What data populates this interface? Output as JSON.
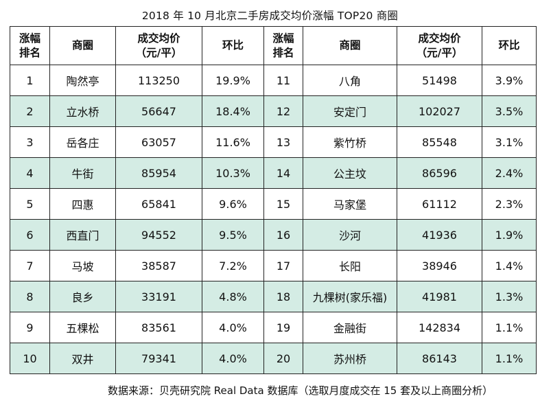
{
  "title": "2018 年 10 月北京二手房成交均价涨幅 TOP20 商圈",
  "header": {
    "rank_line1": "涨幅",
    "rank_line2": "排名",
    "area": "商圈",
    "price_line1": "成交均价",
    "price_line2": "（元/平）",
    "mom": "环比"
  },
  "rows": [
    {
      "left": {
        "rank": "1",
        "area": "陶然亭",
        "price": "113250",
        "mom": "19.9%"
      },
      "right": {
        "rank": "11",
        "area": "八角",
        "price": "51498",
        "mom": "3.9%"
      }
    },
    {
      "left": {
        "rank": "2",
        "area": "立水桥",
        "price": "56647",
        "mom": "18.4%"
      },
      "right": {
        "rank": "12",
        "area": "安定门",
        "price": "102027",
        "mom": "3.5%"
      }
    },
    {
      "left": {
        "rank": "3",
        "area": "岳各庄",
        "price": "63057",
        "mom": "11.6%"
      },
      "right": {
        "rank": "13",
        "area": "紫竹桥",
        "price": "85548",
        "mom": "3.1%"
      }
    },
    {
      "left": {
        "rank": "4",
        "area": "牛街",
        "price": "85954",
        "mom": "10.3%"
      },
      "right": {
        "rank": "14",
        "area": "公主坟",
        "price": "86596",
        "mom": "2.4%"
      }
    },
    {
      "left": {
        "rank": "5",
        "area": "四惠",
        "price": "65841",
        "mom": "9.6%"
      },
      "right": {
        "rank": "15",
        "area": "马家堡",
        "price": "61112",
        "mom": "2.3%"
      }
    },
    {
      "left": {
        "rank": "6",
        "area": "西直门",
        "price": "94552",
        "mom": "9.5%"
      },
      "right": {
        "rank": "16",
        "area": "沙河",
        "price": "41936",
        "mom": "1.9%"
      }
    },
    {
      "left": {
        "rank": "7",
        "area": "马坡",
        "price": "38587",
        "mom": "7.2%"
      },
      "right": {
        "rank": "17",
        "area": "长阳",
        "price": "38946",
        "mom": "1.4%"
      }
    },
    {
      "left": {
        "rank": "8",
        "area": "良乡",
        "price": "33191",
        "mom": "4.8%"
      },
      "right": {
        "rank": "18",
        "area": "九棵树(家乐福)",
        "price": "41981",
        "mom": "1.3%"
      }
    },
    {
      "left": {
        "rank": "9",
        "area": "五棵松",
        "price": "83561",
        "mom": "4.0%"
      },
      "right": {
        "rank": "19",
        "area": "金融街",
        "price": "142834",
        "mom": "1.1%"
      }
    },
    {
      "left": {
        "rank": "10",
        "area": "双井",
        "price": "79341",
        "mom": "4.0%"
      },
      "right": {
        "rank": "20",
        "area": "苏州桥",
        "price": "86143",
        "mom": "1.1%"
      }
    }
  ],
  "colors": {
    "row_shade": "#d4ece4",
    "row_plain": "#ffffff",
    "border": "#222222"
  },
  "footer": "数据来源：贝壳研究院 Real Data 数据库（选取月度成交在 15 套及以上商圈分析）"
}
